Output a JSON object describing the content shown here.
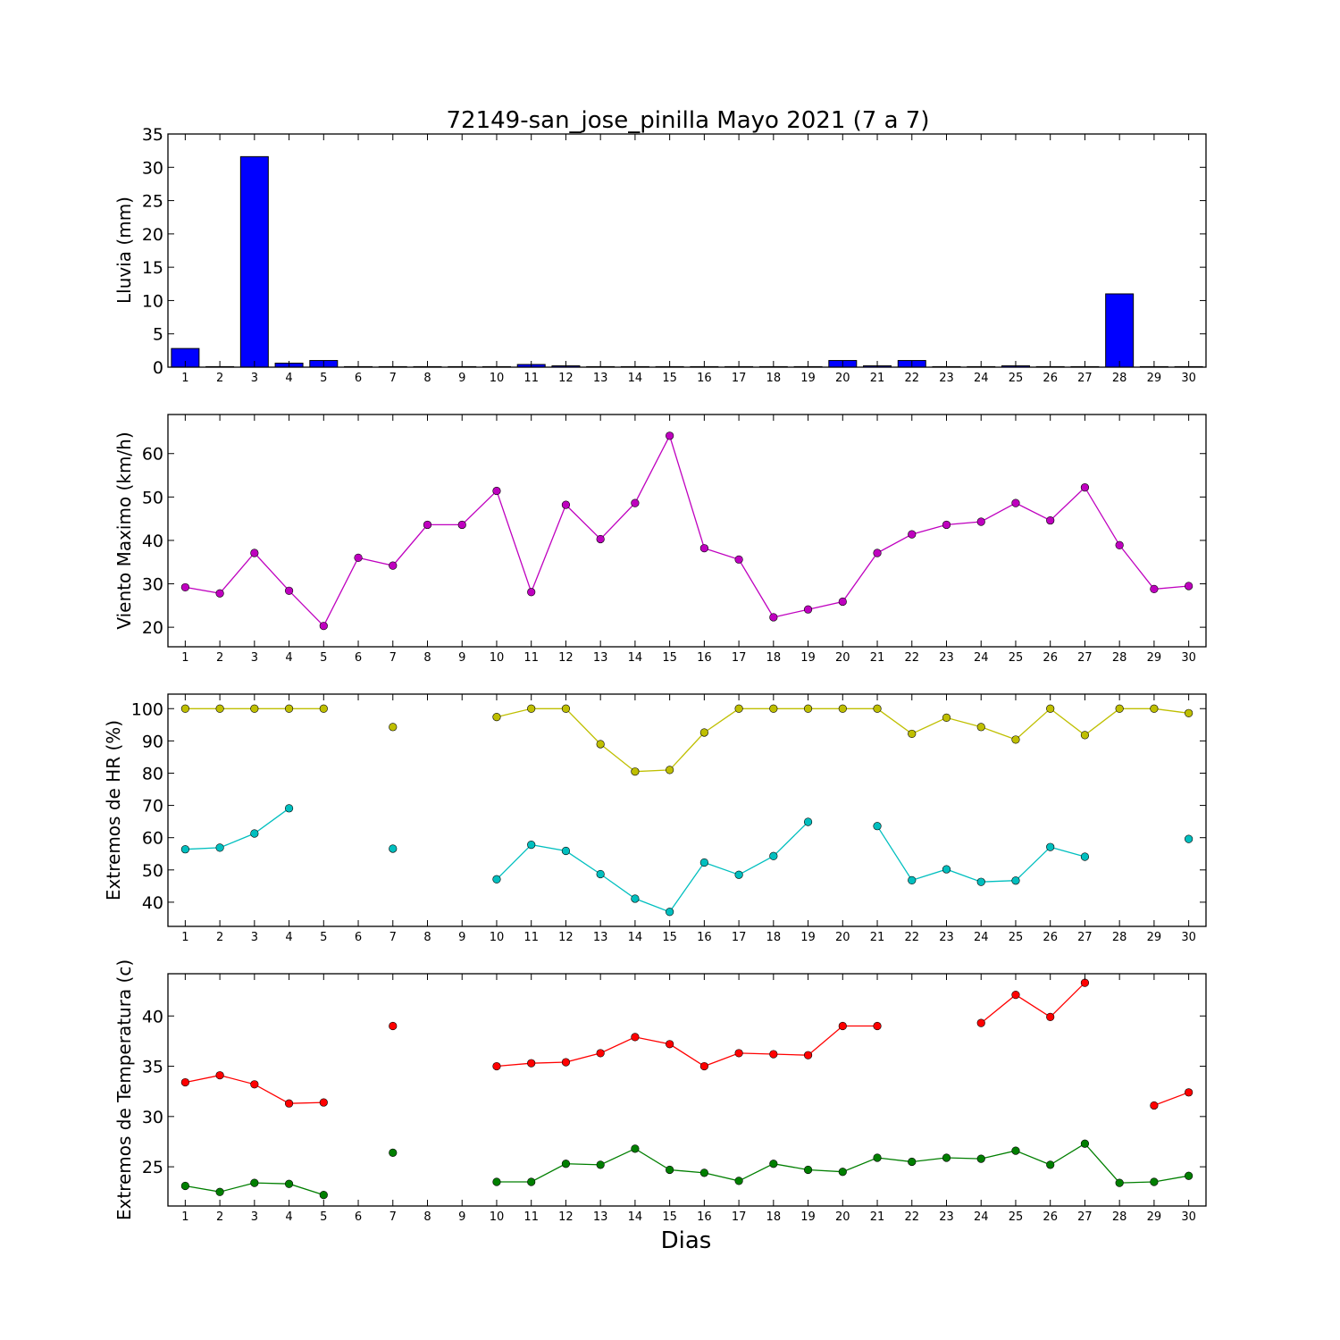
{
  "title": "72149-san_jose_pinilla Mayo 2021  (7 a 7)",
  "xlabel": "Dias",
  "chart_data": [
    {
      "type": "bar",
      "ylabel": "Lluvia (mm)",
      "ylim": [
        0,
        35
      ],
      "yticks": [
        0,
        5,
        10,
        15,
        20,
        25,
        30,
        35
      ],
      "xticks": [
        1,
        2,
        3,
        4,
        5,
        6,
        7,
        8,
        9,
        10,
        11,
        12,
        13,
        14,
        15,
        16,
        17,
        18,
        19,
        20,
        21,
        22,
        23,
        24,
        25,
        26,
        27,
        28,
        29,
        30
      ],
      "xlim": [
        0.5,
        30.5
      ],
      "color": "#0000ff",
      "series": [
        {
          "x": [
            1,
            2,
            3,
            4,
            5,
            6,
            7,
            8,
            9,
            10,
            11,
            12,
            13,
            14,
            15,
            16,
            17,
            18,
            19,
            20,
            21,
            22,
            23,
            24,
            25,
            26,
            27,
            28,
            29,
            30
          ],
          "values": [
            2.8,
            0,
            31.6,
            0.6,
            1.0,
            0,
            0,
            0,
            0,
            0,
            0.4,
            0.2,
            0,
            0,
            0,
            0,
            0,
            0,
            0,
            1.0,
            0.2,
            1.0,
            0,
            0,
            0.2,
            0,
            0,
            11.0,
            0,
            0
          ]
        }
      ]
    },
    {
      "type": "line",
      "ylabel": "Viento Maximo (km/h)",
      "ylim": [
        15.5,
        69
      ],
      "yticks": [
        20,
        30,
        40,
        50,
        60
      ],
      "xticks": [
        1,
        2,
        3,
        4,
        5,
        6,
        7,
        8,
        9,
        10,
        11,
        12,
        13,
        14,
        15,
        16,
        17,
        18,
        19,
        20,
        21,
        22,
        23,
        24,
        25,
        26,
        27,
        28,
        29,
        30
      ],
      "xlim": [
        0.5,
        30.5
      ],
      "series": [
        {
          "color": "#bf00bf",
          "x": [
            1,
            2,
            3,
            4,
            5,
            6,
            7,
            8,
            9,
            10,
            11,
            12,
            13,
            14,
            15,
            16,
            17,
            18,
            19,
            20,
            21,
            22,
            23,
            24,
            25,
            26,
            27,
            28,
            29,
            30
          ],
          "values": [
            29.2,
            27.8,
            37.1,
            28.4,
            20.3,
            36.0,
            34.2,
            43.6,
            43.6,
            51.4,
            28.1,
            48.2,
            40.3,
            48.6,
            64.1,
            38.2,
            35.6,
            22.3,
            24.1,
            25.9,
            37.1,
            41.4,
            43.6,
            44.3,
            48.6,
            44.6,
            52.2,
            38.9,
            28.8,
            29.5
          ]
        }
      ]
    },
    {
      "type": "line",
      "ylabel": "Extremos de HR (%)",
      "ylim": [
        32.5,
        104.5
      ],
      "yticks": [
        40,
        50,
        60,
        70,
        80,
        90,
        100
      ],
      "xticks": [
        1,
        2,
        3,
        4,
        5,
        6,
        7,
        8,
        9,
        10,
        11,
        12,
        13,
        14,
        15,
        16,
        17,
        18,
        19,
        20,
        21,
        22,
        23,
        24,
        25,
        26,
        27,
        28,
        29,
        30
      ],
      "xlim": [
        0.5,
        30.5
      ],
      "series": [
        {
          "color": "#bfbf00",
          "x": [
            1,
            2,
            3,
            4,
            5,
            6,
            7,
            8,
            9,
            10,
            11,
            12,
            13,
            14,
            15,
            16,
            17,
            18,
            19,
            20,
            21,
            22,
            23,
            24,
            25,
            26,
            27,
            28,
            29,
            30
          ],
          "values": [
            100,
            100,
            100,
            100,
            100,
            null,
            94.3,
            null,
            null,
            97.4,
            100,
            100,
            89.0,
            80.5,
            81.0,
            92.6,
            100,
            100,
            100,
            100,
            100,
            92.2,
            97.2,
            94.3,
            90.4,
            100,
            91.8,
            100,
            100,
            98.6
          ]
        },
        {
          "color": "#00bfbf",
          "x": [
            1,
            2,
            3,
            4,
            5,
            6,
            7,
            8,
            9,
            10,
            11,
            12,
            13,
            14,
            15,
            16,
            17,
            18,
            19,
            20,
            21,
            22,
            23,
            24,
            25,
            26,
            27,
            28,
            29,
            30
          ],
          "values": [
            56.4,
            56.9,
            61.3,
            69.1,
            null,
            null,
            56.6,
            null,
            null,
            47.1,
            57.8,
            55.9,
            48.7,
            41.1,
            37.0,
            52.3,
            48.5,
            54.3,
            64.9,
            null,
            63.6,
            46.8,
            50.2,
            46.3,
            46.7,
            57.1,
            54.1,
            null,
            null,
            59.6
          ]
        }
      ]
    },
    {
      "type": "line",
      "ylabel": "Extremos de Temperatura (c)",
      "ylim": [
        21.1,
        44.2
      ],
      "yticks": [
        25,
        30,
        35,
        40
      ],
      "xticks": [
        1,
        2,
        3,
        4,
        5,
        6,
        7,
        8,
        9,
        10,
        11,
        12,
        13,
        14,
        15,
        16,
        17,
        18,
        19,
        20,
        21,
        22,
        23,
        24,
        25,
        26,
        27,
        28,
        29,
        30
      ],
      "xlim": [
        0.5,
        30.5
      ],
      "series": [
        {
          "color": "#ff0000",
          "x": [
            1,
            2,
            3,
            4,
            5,
            6,
            7,
            8,
            9,
            10,
            11,
            12,
            13,
            14,
            15,
            16,
            17,
            18,
            19,
            20,
            21,
            22,
            23,
            24,
            25,
            26,
            27,
            28,
            29,
            30
          ],
          "values": [
            33.4,
            34.1,
            33.2,
            31.3,
            31.4,
            null,
            39.0,
            null,
            null,
            35.0,
            35.3,
            35.4,
            36.3,
            37.9,
            37.2,
            35.0,
            36.3,
            36.2,
            36.1,
            39.0,
            39.0,
            null,
            null,
            39.3,
            42.1,
            39.9,
            43.3,
            null,
            31.1,
            32.4
          ]
        },
        {
          "color": "#007f00",
          "x": [
            1,
            2,
            3,
            4,
            5,
            6,
            7,
            8,
            9,
            10,
            11,
            12,
            13,
            14,
            15,
            16,
            17,
            18,
            19,
            20,
            21,
            22,
            23,
            24,
            25,
            26,
            27,
            28,
            29,
            30
          ],
          "values": [
            23.1,
            22.5,
            23.4,
            23.3,
            22.2,
            null,
            26.4,
            null,
            null,
            23.5,
            23.5,
            25.3,
            25.2,
            26.8,
            24.7,
            24.4,
            23.6,
            25.3,
            24.7,
            24.5,
            25.9,
            25.5,
            25.9,
            25.8,
            26.6,
            25.2,
            27.3,
            23.4,
            23.5,
            24.1
          ]
        }
      ]
    }
  ]
}
